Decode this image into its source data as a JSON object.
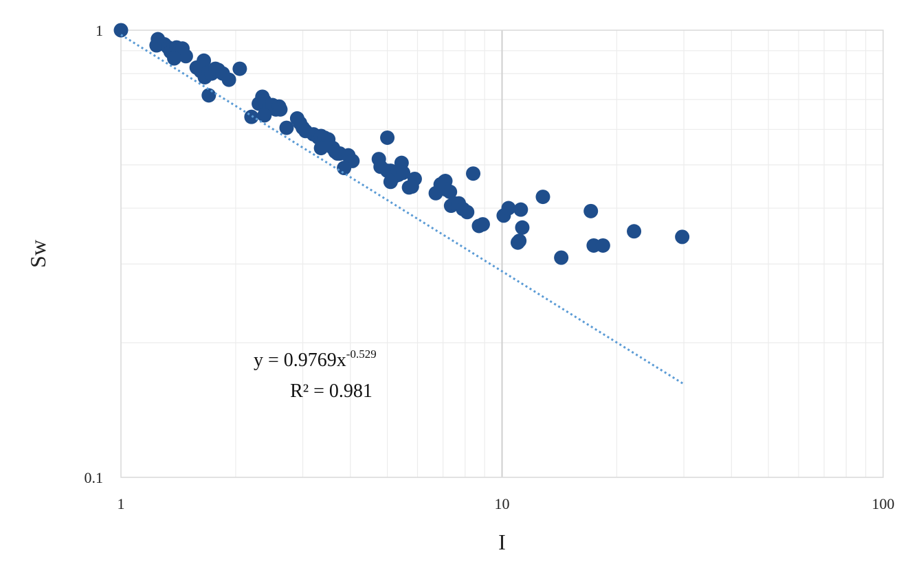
{
  "chart_data": {
    "type": "scatter",
    "xlabel": "I",
    "ylabel": "Sw",
    "x_scale": "log",
    "y_scale": "log",
    "xlim": [
      1,
      100
    ],
    "ylim": [
      0.1,
      1
    ],
    "x_tick_labels": [
      "1",
      "10",
      "100"
    ],
    "y_tick_labels": [
      "0.1",
      "1"
    ],
    "grid": true,
    "legend": "none",
    "marker_color": "#1f4e8c",
    "trendline_color": "#5b9bd5",
    "trendline": {
      "type": "power",
      "a": 0.9769,
      "b": -0.529,
      "x_range": [
        1,
        30
      ],
      "equation_main": "y = 0.9769x",
      "equation_exponent": "-0.529",
      "r_squared": "R² = 0.981"
    },
    "points": [
      [
        1.0,
        1.0
      ],
      [
        1.25,
        0.955
      ],
      [
        1.24,
        0.925
      ],
      [
        1.3,
        0.93
      ],
      [
        1.33,
        0.915
      ],
      [
        1.35,
        0.895
      ],
      [
        1.37,
        0.905
      ],
      [
        1.4,
        0.915
      ],
      [
        1.42,
        0.9
      ],
      [
        1.45,
        0.91
      ],
      [
        1.48,
        0.875
      ],
      [
        1.38,
        0.865
      ],
      [
        1.58,
        0.825
      ],
      [
        1.62,
        0.81
      ],
      [
        1.65,
        0.855
      ],
      [
        1.66,
        0.785
      ],
      [
        1.7,
        0.805
      ],
      [
        1.73,
        0.8
      ],
      [
        1.77,
        0.82
      ],
      [
        1.8,
        0.815
      ],
      [
        1.85,
        0.8
      ],
      [
        1.92,
        0.775
      ],
      [
        2.05,
        0.82
      ],
      [
        1.7,
        0.715
      ],
      [
        2.3,
        0.685
      ],
      [
        2.35,
        0.71
      ],
      [
        2.38,
        0.695
      ],
      [
        2.4,
        0.685
      ],
      [
        2.45,
        0.675
      ],
      [
        2.5,
        0.68
      ],
      [
        2.55,
        0.665
      ],
      [
        2.6,
        0.675
      ],
      [
        2.62,
        0.665
      ],
      [
        2.38,
        0.645
      ],
      [
        2.2,
        0.64
      ],
      [
        2.9,
        0.635
      ],
      [
        2.95,
        0.62
      ],
      [
        3.0,
        0.605
      ],
      [
        3.05,
        0.595
      ],
      [
        2.72,
        0.605
      ],
      [
        3.2,
        0.585
      ],
      [
        3.3,
        0.575
      ],
      [
        3.35,
        0.58
      ],
      [
        3.42,
        0.575
      ],
      [
        3.5,
        0.57
      ],
      [
        3.35,
        0.545
      ],
      [
        3.6,
        0.545
      ],
      [
        3.65,
        0.535
      ],
      [
        3.7,
        0.53
      ],
      [
        3.75,
        0.53
      ],
      [
        3.95,
        0.525
      ],
      [
        4.05,
        0.51
      ],
      [
        3.85,
        0.492
      ],
      [
        4.75,
        0.515
      ],
      [
        4.8,
        0.495
      ],
      [
        5.1,
        0.485
      ],
      [
        5.0,
        0.485
      ],
      [
        5.2,
        0.47
      ],
      [
        5.35,
        0.475
      ],
      [
        5.45,
        0.505
      ],
      [
        5.5,
        0.48
      ],
      [
        5.9,
        0.465
      ],
      [
        5.1,
        0.458
      ],
      [
        5.7,
        0.445
      ],
      [
        5.8,
        0.447
      ],
      [
        5.0,
        0.575
      ],
      [
        6.9,
        0.452
      ],
      [
        7.0,
        0.445
      ],
      [
        7.05,
        0.458
      ],
      [
        7.1,
        0.46
      ],
      [
        6.7,
        0.432
      ],
      [
        7.15,
        0.44
      ],
      [
        7.3,
        0.435
      ],
      [
        7.35,
        0.405
      ],
      [
        7.5,
        0.41
      ],
      [
        7.7,
        0.41
      ],
      [
        7.9,
        0.398
      ],
      [
        8.1,
        0.392
      ],
      [
        8.4,
        0.478
      ],
      [
        8.7,
        0.365
      ],
      [
        8.9,
        0.368
      ],
      [
        10.1,
        0.385
      ],
      [
        10.4,
        0.4
      ],
      [
        11.2,
        0.397
      ],
      [
        11.3,
        0.362
      ],
      [
        11.0,
        0.335
      ],
      [
        11.1,
        0.338
      ],
      [
        12.8,
        0.424
      ],
      [
        14.3,
        0.31
      ],
      [
        17.1,
        0.394
      ],
      [
        17.4,
        0.33
      ],
      [
        18.4,
        0.33
      ],
      [
        22.2,
        0.355
      ],
      [
        29.7,
        0.345
      ]
    ]
  }
}
